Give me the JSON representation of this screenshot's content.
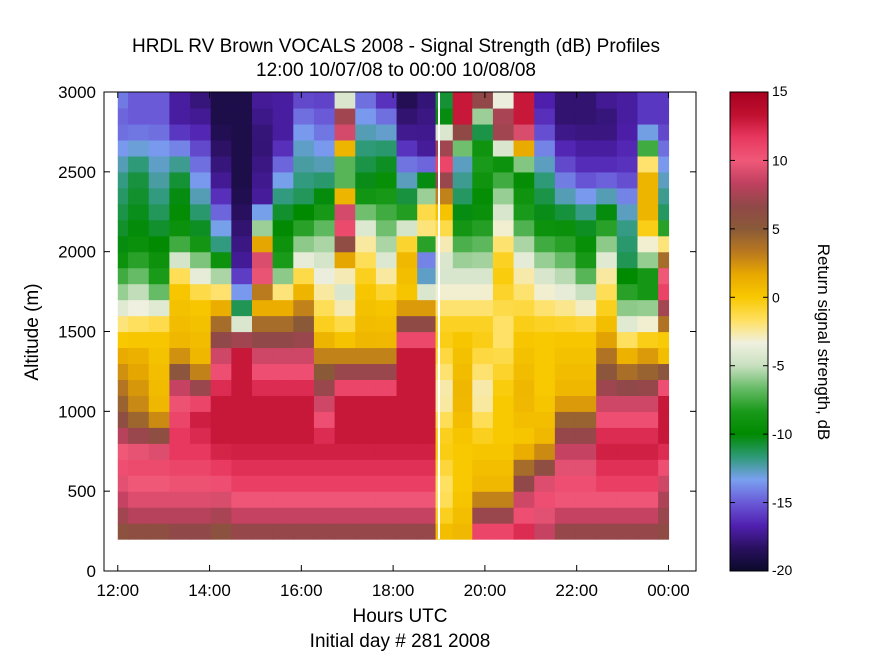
{
  "chart_data": {
    "type": "heatmap",
    "title": "HRDL RV Brown VOCALS 2008 - Signal Strength (dB) Profiles",
    "subtitle": "12:00 10/07/08 to 00:00 10/08/08",
    "xlabel": "Hours UTC",
    "xlabel2": "Initial day # 281  2008",
    "ylabel": "Altitude (m)",
    "x_ticks": [
      "12:00",
      "14:00",
      "16:00",
      "18:00",
      "20:00",
      "22:00",
      "00:00"
    ],
    "x_tick_hours": [
      12,
      14,
      16,
      18,
      20,
      22,
      24
    ],
    "xlim": [
      11.7,
      24.6
    ],
    "y_ticks": [
      0,
      500,
      1000,
      1500,
      2000,
      2500,
      3000
    ],
    "ylim": [
      0,
      3000
    ],
    "data_alt_range": [
      200,
      3000
    ],
    "gap_hour": 19.0,
    "colorbar": {
      "label": "Return signal strength, dB",
      "range": [
        -20,
        15
      ],
      "ticks": [
        "15",
        "10",
        "5",
        "0",
        "-5",
        "-10",
        "-15",
        "-20"
      ],
      "tick_values": [
        15,
        10,
        5,
        0,
        -5,
        -10,
        -15,
        -20
      ],
      "colors": [
        "#0a0a2a",
        "#2a1060",
        "#5020b0",
        "#6a5ad8",
        "#7aa0f0",
        "#2e9a78",
        "#008a00",
        "#1a9a1a",
        "#66bb66",
        "#c8e0c0",
        "#f0f0e0",
        "#ffe060",
        "#f8c800",
        "#e8a800",
        "#b87820",
        "#8a5a38",
        "#904848",
        "#c04060",
        "#f05878",
        "#e83860",
        "#c01030",
        "#a80020"
      ]
    },
    "profiles": [
      {
        "t": 12.0,
        "z": [
          [
            200,
            5
          ],
          [
            400,
            8
          ],
          [
            700,
            11
          ],
          [
            1000,
            5
          ],
          [
            1400,
            1
          ],
          [
            1700,
            -5
          ],
          [
            2000,
            -10
          ],
          [
            2500,
            -12
          ],
          [
            2800,
            -15
          ],
          [
            3000,
            -14
          ]
        ]
      },
      {
        "t": 12.45,
        "z": [
          [
            200,
            5
          ],
          [
            400,
            9
          ],
          [
            700,
            11
          ],
          [
            1000,
            3
          ],
          [
            1400,
            1
          ],
          [
            1800,
            -6
          ],
          [
            2100,
            -10
          ],
          [
            2500,
            -11
          ],
          [
            2800,
            -15
          ],
          [
            3000,
            -15
          ]
        ]
      },
      {
        "t": 12.9,
        "z": [
          [
            200,
            5
          ],
          [
            400,
            9
          ],
          [
            700,
            11
          ],
          [
            1000,
            1
          ],
          [
            1500,
            0
          ],
          [
            1800,
            -8
          ],
          [
            2200,
            -11
          ],
          [
            2600,
            -13
          ],
          [
            2800,
            -15
          ],
          [
            3000,
            -15
          ]
        ]
      },
      {
        "t": 13.35,
        "z": [
          [
            200,
            6
          ],
          [
            500,
            10
          ],
          [
            800,
            12
          ],
          [
            1100,
            10
          ],
          [
            1400,
            1
          ],
          [
            1800,
            0
          ],
          [
            2100,
            -9
          ],
          [
            2500,
            -11
          ],
          [
            2800,
            -17
          ],
          [
            3000,
            -17
          ]
        ]
      },
      {
        "t": 13.8,
        "z": [
          [
            200,
            6
          ],
          [
            500,
            10
          ],
          [
            800,
            12
          ],
          [
            1000,
            13
          ],
          [
            1300,
            1
          ],
          [
            1700,
            0
          ],
          [
            2100,
            -10
          ],
          [
            2500,
            -14
          ],
          [
            2800,
            -17
          ],
          [
            3000,
            -18
          ]
        ]
      },
      {
        "t": 14.25,
        "z": [
          [
            200,
            5
          ],
          [
            500,
            10
          ],
          [
            800,
            13
          ],
          [
            1100,
            13
          ],
          [
            1400,
            8
          ],
          [
            1700,
            0
          ],
          [
            2000,
            -11
          ],
          [
            2400,
            -17
          ],
          [
            2800,
            -19
          ],
          [
            3000,
            -19
          ]
        ]
      },
      {
        "t": 14.7,
        "z": [
          [
            200,
            6
          ],
          [
            500,
            11
          ],
          [
            800,
            13
          ],
          [
            1100,
            13
          ],
          [
            1400,
            13
          ],
          [
            1600,
            -10
          ],
          [
            1900,
            -17
          ],
          [
            2400,
            -19
          ],
          [
            2800,
            -19
          ],
          [
            3000,
            -19
          ]
        ]
      },
      {
        "t": 15.15,
        "z": [
          [
            200,
            6
          ],
          [
            500,
            11
          ],
          [
            800,
            13
          ],
          [
            1100,
            13
          ],
          [
            1400,
            8
          ],
          [
            1700,
            0
          ],
          [
            1900,
            13
          ],
          [
            2300,
            -17
          ],
          [
            2700,
            -18
          ],
          [
            3000,
            -17
          ]
        ]
      },
      {
        "t": 15.6,
        "z": [
          [
            200,
            6
          ],
          [
            500,
            11
          ],
          [
            800,
            13
          ],
          [
            1100,
            13
          ],
          [
            1400,
            8
          ],
          [
            1700,
            0
          ],
          [
            1900,
            -8
          ],
          [
            2300,
            -11
          ],
          [
            2700,
            -17
          ],
          [
            3000,
            -17
          ]
        ]
      },
      {
        "t": 16.05,
        "z": [
          [
            200,
            6
          ],
          [
            500,
            11
          ],
          [
            800,
            13
          ],
          [
            1100,
            13
          ],
          [
            1400,
            8
          ],
          [
            1800,
            0
          ],
          [
            2000,
            -5
          ],
          [
            2300,
            -11
          ],
          [
            2700,
            -13
          ],
          [
            3000,
            -16
          ]
        ]
      },
      {
        "t": 16.5,
        "z": [
          [
            200,
            6
          ],
          [
            500,
            11
          ],
          [
            800,
            13
          ],
          [
            1100,
            8
          ],
          [
            1500,
            0
          ],
          [
            1800,
            -3
          ],
          [
            2100,
            -6
          ],
          [
            2400,
            -11
          ],
          [
            2700,
            -14
          ],
          [
            3000,
            -16
          ]
        ]
      },
      {
        "t": 16.95,
        "z": [
          [
            200,
            6
          ],
          [
            500,
            11
          ],
          [
            800,
            13
          ],
          [
            1100,
            13
          ],
          [
            1400,
            1
          ],
          [
            1800,
            -5
          ],
          [
            2200,
            13
          ],
          [
            2500,
            -11
          ],
          [
            2800,
            13
          ],
          [
            3000,
            -10
          ]
        ]
      },
      {
        "t": 17.4,
        "z": [
          [
            200,
            6
          ],
          [
            500,
            11
          ],
          [
            800,
            13
          ],
          [
            1100,
            13
          ],
          [
            1400,
            1
          ],
          [
            1800,
            0
          ],
          [
            2100,
            -3
          ],
          [
            2400,
            -10
          ],
          [
            2700,
            -12
          ],
          [
            3000,
            -15
          ]
        ]
      },
      {
        "t": 17.85,
        "z": [
          [
            200,
            6
          ],
          [
            500,
            11
          ],
          [
            800,
            13
          ],
          [
            1100,
            13
          ],
          [
            1400,
            1
          ],
          [
            1700,
            0
          ],
          [
            2000,
            -5
          ],
          [
            2400,
            -9
          ],
          [
            2700,
            -12
          ],
          [
            3000,
            -17
          ]
        ]
      },
      {
        "t": 18.3,
        "z": [
          [
            200,
            6
          ],
          [
            500,
            11
          ],
          [
            800,
            13
          ],
          [
            1100,
            13
          ],
          [
            1400,
            13
          ],
          [
            1700,
            0
          ],
          [
            2000,
            1
          ],
          [
            2300,
            -10
          ],
          [
            2700,
            -17
          ],
          [
            3000,
            -19
          ]
        ]
      },
      {
        "t": 18.75,
        "z": [
          [
            200,
            6
          ],
          [
            500,
            11
          ],
          [
            800,
            13
          ],
          [
            1100,
            13
          ],
          [
            1400,
            13
          ],
          [
            1700,
            0
          ],
          [
            1900,
            -17
          ],
          [
            2200,
            1
          ],
          [
            2600,
            -17
          ],
          [
            3000,
            -18
          ]
        ]
      },
      {
        "t": 19.1,
        "z": [
          [
            200,
            1
          ],
          [
            500,
            -2
          ],
          [
            800,
            0
          ],
          [
            1100,
            -3
          ],
          [
            1500,
            0
          ],
          [
            1900,
            -5
          ],
          [
            2300,
            1
          ],
          [
            2600,
            13
          ],
          [
            2800,
            -10
          ],
          [
            3000,
            -11
          ]
        ]
      },
      {
        "t": 19.5,
        "z": [
          [
            200,
            1
          ],
          [
            500,
            0
          ],
          [
            800,
            0
          ],
          [
            1100,
            1
          ],
          [
            1500,
            0
          ],
          [
            1900,
            -5
          ],
          [
            2300,
            -11
          ],
          [
            2600,
            -13
          ],
          [
            2800,
            13
          ],
          [
            3000,
            13
          ]
        ]
      },
      {
        "t": 19.95,
        "z": [
          [
            200,
            13
          ],
          [
            500,
            1
          ],
          [
            800,
            0
          ],
          [
            1100,
            -3
          ],
          [
            1500,
            0
          ],
          [
            1900,
            -5
          ],
          [
            2300,
            -10
          ],
          [
            2600,
            -8
          ],
          [
            2800,
            -12
          ],
          [
            3000,
            13
          ]
        ]
      },
      {
        "t": 20.4,
        "z": [
          [
            200,
            13
          ],
          [
            500,
            1
          ],
          [
            800,
            0
          ],
          [
            1100,
            0
          ],
          [
            1500,
            -2
          ],
          [
            1900,
            0
          ],
          [
            2300,
            -5
          ],
          [
            2600,
            -10
          ],
          [
            2800,
            13
          ],
          [
            3000,
            -9
          ]
        ]
      },
      {
        "t": 20.85,
        "z": [
          [
            200,
            13
          ],
          [
            500,
            8
          ],
          [
            800,
            0
          ],
          [
            1100,
            1
          ],
          [
            1500,
            0
          ],
          [
            1900,
            -3
          ],
          [
            2200,
            -8
          ],
          [
            2500,
            -10
          ],
          [
            2800,
            13
          ],
          [
            3000,
            13
          ]
        ]
      },
      {
        "t": 21.3,
        "z": [
          [
            200,
            8
          ],
          [
            500,
            11
          ],
          [
            800,
            1
          ],
          [
            1100,
            0
          ],
          [
            1500,
            0
          ],
          [
            1900,
            -5
          ],
          [
            2200,
            -10
          ],
          [
            2500,
            -12
          ],
          [
            2800,
            -16
          ],
          [
            3000,
            -17
          ]
        ]
      },
      {
        "t": 21.75,
        "z": [
          [
            200,
            6
          ],
          [
            500,
            11
          ],
          [
            800,
            8
          ],
          [
            1100,
            1
          ],
          [
            1500,
            0
          ],
          [
            1900,
            -6
          ],
          [
            2200,
            -10
          ],
          [
            2500,
            -15
          ],
          [
            2800,
            -18
          ],
          [
            3000,
            -18
          ]
        ]
      },
      {
        "t": 22.2,
        "z": [
          [
            200,
            6
          ],
          [
            500,
            11
          ],
          [
            800,
            8
          ],
          [
            1100,
            1
          ],
          [
            1500,
            0
          ],
          [
            1900,
            -8
          ],
          [
            2200,
            -11
          ],
          [
            2500,
            -16
          ],
          [
            2800,
            -18
          ],
          [
            3000,
            -18
          ]
        ]
      },
      {
        "t": 22.65,
        "z": [
          [
            200,
            6
          ],
          [
            500,
            11
          ],
          [
            800,
            13
          ],
          [
            1100,
            8
          ],
          [
            1500,
            1
          ],
          [
            1900,
            -3
          ],
          [
            2200,
            -9
          ],
          [
            2500,
            -16
          ],
          [
            2800,
            -18
          ],
          [
            3000,
            -17
          ]
        ]
      },
      {
        "t": 23.1,
        "z": [
          [
            200,
            6
          ],
          [
            500,
            11
          ],
          [
            800,
            13
          ],
          [
            1100,
            8
          ],
          [
            1500,
            -3
          ],
          [
            1900,
            -11
          ],
          [
            2200,
            -12
          ],
          [
            2500,
            -16
          ],
          [
            2800,
            -17
          ],
          [
            3000,
            -17
          ]
        ]
      },
      {
        "t": 23.55,
        "z": [
          [
            200,
            6
          ],
          [
            500,
            11
          ],
          [
            800,
            13
          ],
          [
            1100,
            8
          ],
          [
            1400,
            1
          ],
          [
            1800,
            -10
          ],
          [
            2200,
            1
          ],
          [
            2500,
            1
          ],
          [
            2800,
            -16
          ],
          [
            3000,
            -16
          ]
        ]
      },
      {
        "t": 24.0,
        "z": [
          [
            200,
            6
          ],
          [
            500,
            8
          ],
          [
            800,
            13
          ],
          [
            1100,
            13
          ],
          [
            1400,
            -2
          ],
          [
            1800,
            13
          ],
          [
            2200,
            -11
          ],
          [
            2500,
            -13
          ],
          [
            2800,
            -16
          ],
          [
            3000,
            -16
          ]
        ]
      }
    ]
  }
}
